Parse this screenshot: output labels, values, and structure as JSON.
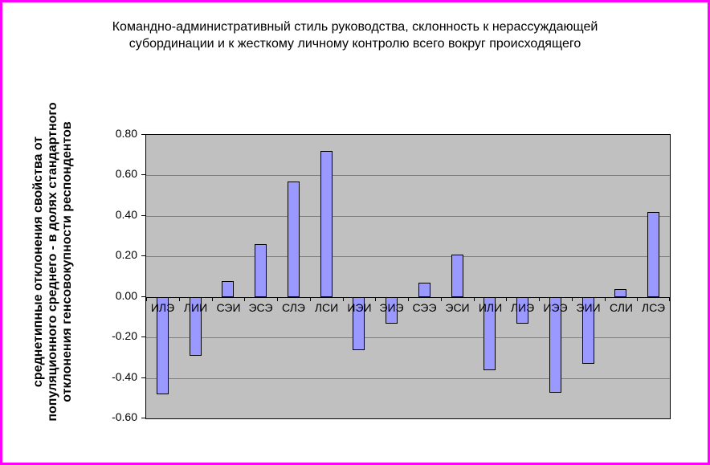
{
  "window": {
    "border_color": "#ff00ff",
    "background": "#ffffff"
  },
  "chart_data": {
    "type": "bar",
    "title": "Командно-административный стиль руководства, склонность к нерассуждающей субординации и к жесткому личному контролю всего вокруг происходящего",
    "ylabel": "среднетипные отклонения свойства от популяционного среднего - в долях стандартного отклонения генсовокупности респондентов",
    "ylabel_lines": [
      "среднетипные отклонения свойства от",
      "популяционного среднего - в долях стандартного",
      "отклонения генсовокупности респондентов"
    ],
    "categories": [
      "ИЛЭ",
      "ЛИИ",
      "СЭИ",
      "ЭСЭ",
      "СЛЭ",
      "ЛСИ",
      "ИЭИ",
      "ЭИЭ",
      "СЭЭ",
      "ЭСИ",
      "ИЛИ",
      "ЛИЭ",
      "ИЭЭ",
      "ЭИИ",
      "СЛИ",
      "ЛСЭ"
    ],
    "values": [
      -0.48,
      -0.29,
      0.08,
      0.26,
      0.57,
      0.72,
      -0.26,
      -0.13,
      0.07,
      0.21,
      -0.36,
      -0.13,
      -0.47,
      -0.33,
      0.04,
      0.42
    ],
    "ylim": [
      -0.6,
      0.8
    ],
    "ytick_step": 0.2,
    "ytick_labels": [
      "0.80",
      "0.60",
      "0.40",
      "0.20",
      "0.00",
      "-0.20",
      "-0.40",
      "-0.60"
    ],
    "grid": true,
    "legend": "none",
    "colors": {
      "bar_fill": "#9999ff",
      "bar_border": "#000000",
      "plot_bg": "#c0c0c0",
      "gridline": "#808080",
      "axis": "#000000",
      "text": "#000000"
    }
  }
}
